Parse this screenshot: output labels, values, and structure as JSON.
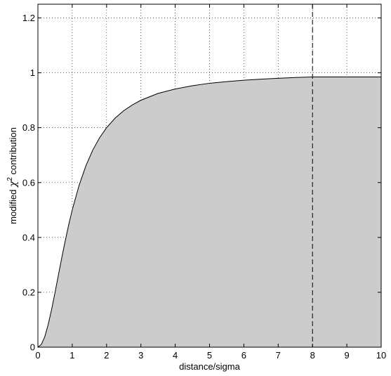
{
  "chart_data": {
    "type": "area",
    "title": "",
    "xlabel": "distance/sigma",
    "ylabel": {
      "prefix": "modified ",
      "symbol": "χ",
      "superscript": "2",
      "suffix": " contribution"
    },
    "xlim": [
      0,
      10
    ],
    "ylim": [
      0,
      1.25
    ],
    "xticks": [
      0,
      1,
      2,
      3,
      4,
      5,
      6,
      7,
      8,
      9,
      10
    ],
    "xtick_labels": [
      "0",
      "1",
      "2",
      "3",
      "4",
      "5",
      "6",
      "7",
      "8",
      "9",
      "10"
    ],
    "yticks": [
      0,
      0.2,
      0.4,
      0.6,
      0.8,
      1,
      1.2
    ],
    "ytick_labels": [
      "0",
      "0.2",
      "0.4",
      "0.6",
      "0.8",
      "1",
      "1.2"
    ],
    "grid": true,
    "cutoff_x": 8,
    "fill_color": "#cccccc",
    "line_color": "#000000",
    "series": [
      {
        "x": [
          0,
          0.1,
          0.2,
          0.3,
          0.4,
          0.5,
          0.6,
          0.7,
          0.8,
          0.9,
          1.0,
          1.2,
          1.4,
          1.6,
          1.8,
          2.0,
          2.25,
          2.5,
          2.75,
          3.0,
          3.5,
          4.0,
          4.5,
          5.0,
          5.5,
          6.0,
          6.5,
          7.0,
          7.5,
          8.0,
          10.0
        ],
        "y": [
          0,
          0.01,
          0.038,
          0.083,
          0.138,
          0.2,
          0.265,
          0.329,
          0.39,
          0.448,
          0.5,
          0.59,
          0.662,
          0.719,
          0.764,
          0.8,
          0.835,
          0.862,
          0.883,
          0.9,
          0.925,
          0.941,
          0.953,
          0.962,
          0.968,
          0.973,
          0.977,
          0.98,
          0.983,
          0.985,
          0.985
        ]
      }
    ]
  }
}
